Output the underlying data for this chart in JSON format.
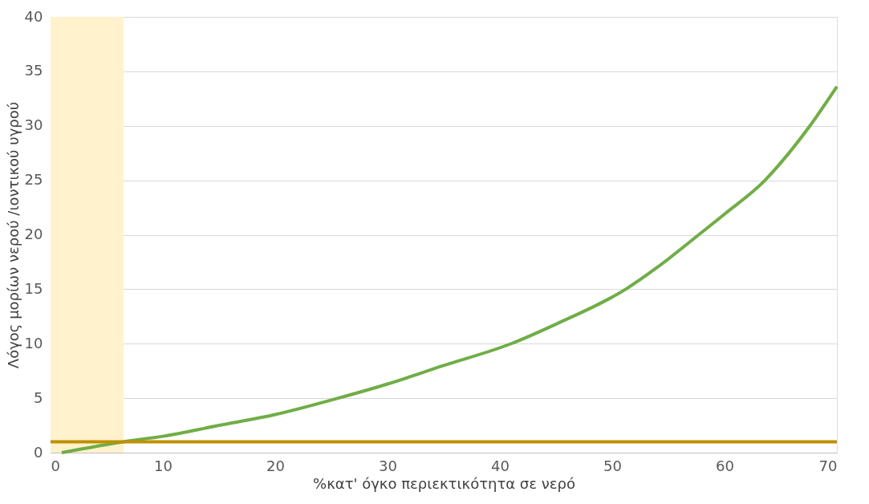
{
  "chart_data": {
    "type": "line",
    "xlabel": "%κατ' όγκο περιεκτικότητα σε νερό",
    "ylabel": "Λόγος μορίων νερού /ιοντικού υγρού",
    "series": [
      {
        "color": "#70ad47",
        "x": [
          1,
          6.5,
          10,
          15,
          20,
          25.6,
          30,
          35,
          41,
          45,
          51.2,
          54,
          57.7,
          60,
          63.6,
          65,
          67.6,
          70
        ],
        "values": [
          0,
          1,
          1.5,
          2.5,
          3.5,
          5,
          6.3,
          8,
          10,
          11.8,
          15,
          17,
          20,
          21.9,
          25,
          26.6,
          30,
          33.6
        ]
      }
    ],
    "xlim": [
      0,
      70
    ],
    "xticks": [
      0,
      10,
      20,
      30,
      40,
      50,
      60,
      70
    ],
    "ylim": [
      0,
      40
    ],
    "yticks": [
      0,
      5,
      10,
      15,
      20,
      25,
      30,
      35,
      40
    ],
    "grid": "y",
    "marker": "none",
    "line_style": "solid",
    "legend": false,
    "ref_lines": [
      {
        "axis": "y",
        "value": 1,
        "color": "#bf9000",
        "line_style": "solid"
      }
    ],
    "bands": [
      {
        "axis": "x",
        "from": 0,
        "to": 6.5,
        "color": "#fff2cc"
      }
    ]
  }
}
